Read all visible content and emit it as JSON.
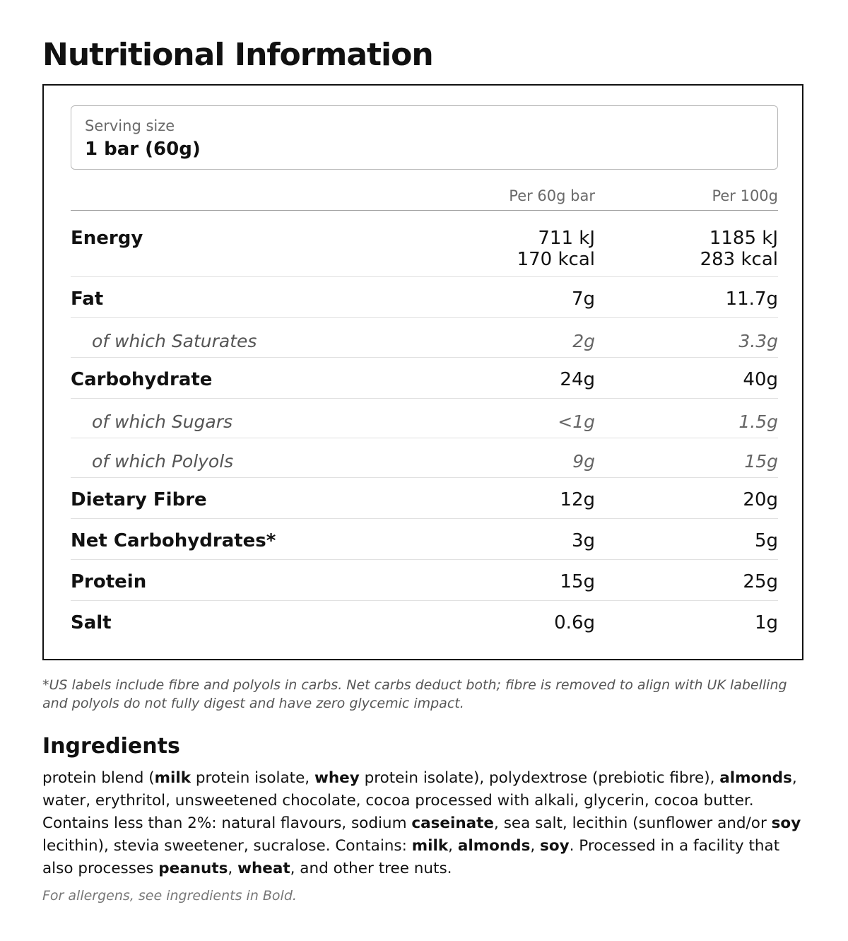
{
  "title": "Nutritional Information",
  "serving": {
    "label": "Serving size",
    "value": "1 bar (60g)"
  },
  "columns": [
    "Per 60g bar",
    "Per 100g"
  ],
  "rows": [
    {
      "name": "Energy",
      "per_serving": [
        "711 kJ",
        "170 kcal"
      ],
      "per_100g": [
        "1185 kJ",
        "283 kcal"
      ],
      "sub": false
    },
    {
      "name": "Fat",
      "per_serving": "7g",
      "per_100g": "11.7g",
      "sub": false
    },
    {
      "name": "of which Saturates",
      "per_serving": "2g",
      "per_100g": "3.3g",
      "sub": true
    },
    {
      "name": "Carbohydrate",
      "per_serving": "24g",
      "per_100g": "40g",
      "sub": false
    },
    {
      "name": "of which Sugars",
      "per_serving": "<1g",
      "per_100g": "1.5g",
      "sub": true
    },
    {
      "name": "of which Polyols",
      "per_serving": "9g",
      "per_100g": "15g",
      "sub": true
    },
    {
      "name": "Dietary Fibre",
      "per_serving": "12g",
      "per_100g": "20g",
      "sub": false
    },
    {
      "name": "Net Carbohydrates*",
      "per_serving": "3g",
      "per_100g": "5g",
      "sub": false
    },
    {
      "name": "Protein",
      "per_serving": "15g",
      "per_100g": "25g",
      "sub": false
    },
    {
      "name": "Salt",
      "per_serving": "0.6g",
      "per_100g": "1g",
      "sub": false
    }
  ],
  "footnote": "*US labels include fibre and polyols in carbs. Net carbs deduct both; fibre is removed to align with UK labelling and polyols do not fully digest and have zero glycemic impact.",
  "ingredients": {
    "title": "Ingredients",
    "segments": [
      {
        "t": "protein blend ("
      },
      {
        "t": "milk",
        "b": true
      },
      {
        "t": " protein isolate, "
      },
      {
        "t": "whey",
        "b": true
      },
      {
        "t": " protein isolate), polydextrose (prebiotic fibre), "
      },
      {
        "t": "almonds",
        "b": true
      },
      {
        "t": ", water, erythritol, unsweetened chocolate, cocoa processed with alkali, glycerin, cocoa butter. Contains less than 2%: natural flavours, sodium "
      },
      {
        "t": "caseinate",
        "b": true
      },
      {
        "t": ", sea salt, lecithin (sunflower and/or "
      },
      {
        "t": "soy",
        "b": true
      },
      {
        "t": " lecithin), stevia sweetener, sucralose. Contains: "
      },
      {
        "t": "milk",
        "b": true
      },
      {
        "t": ", "
      },
      {
        "t": "almonds",
        "b": true
      },
      {
        "t": ", "
      },
      {
        "t": "soy",
        "b": true
      },
      {
        "t": ". Processed in a facility that also processes "
      },
      {
        "t": "peanuts",
        "b": true
      },
      {
        "t": ", "
      },
      {
        "t": "wheat",
        "b": true
      },
      {
        "t": ", and other tree nuts."
      }
    ],
    "allergen_note": "For allergens, see ingredients in Bold."
  }
}
